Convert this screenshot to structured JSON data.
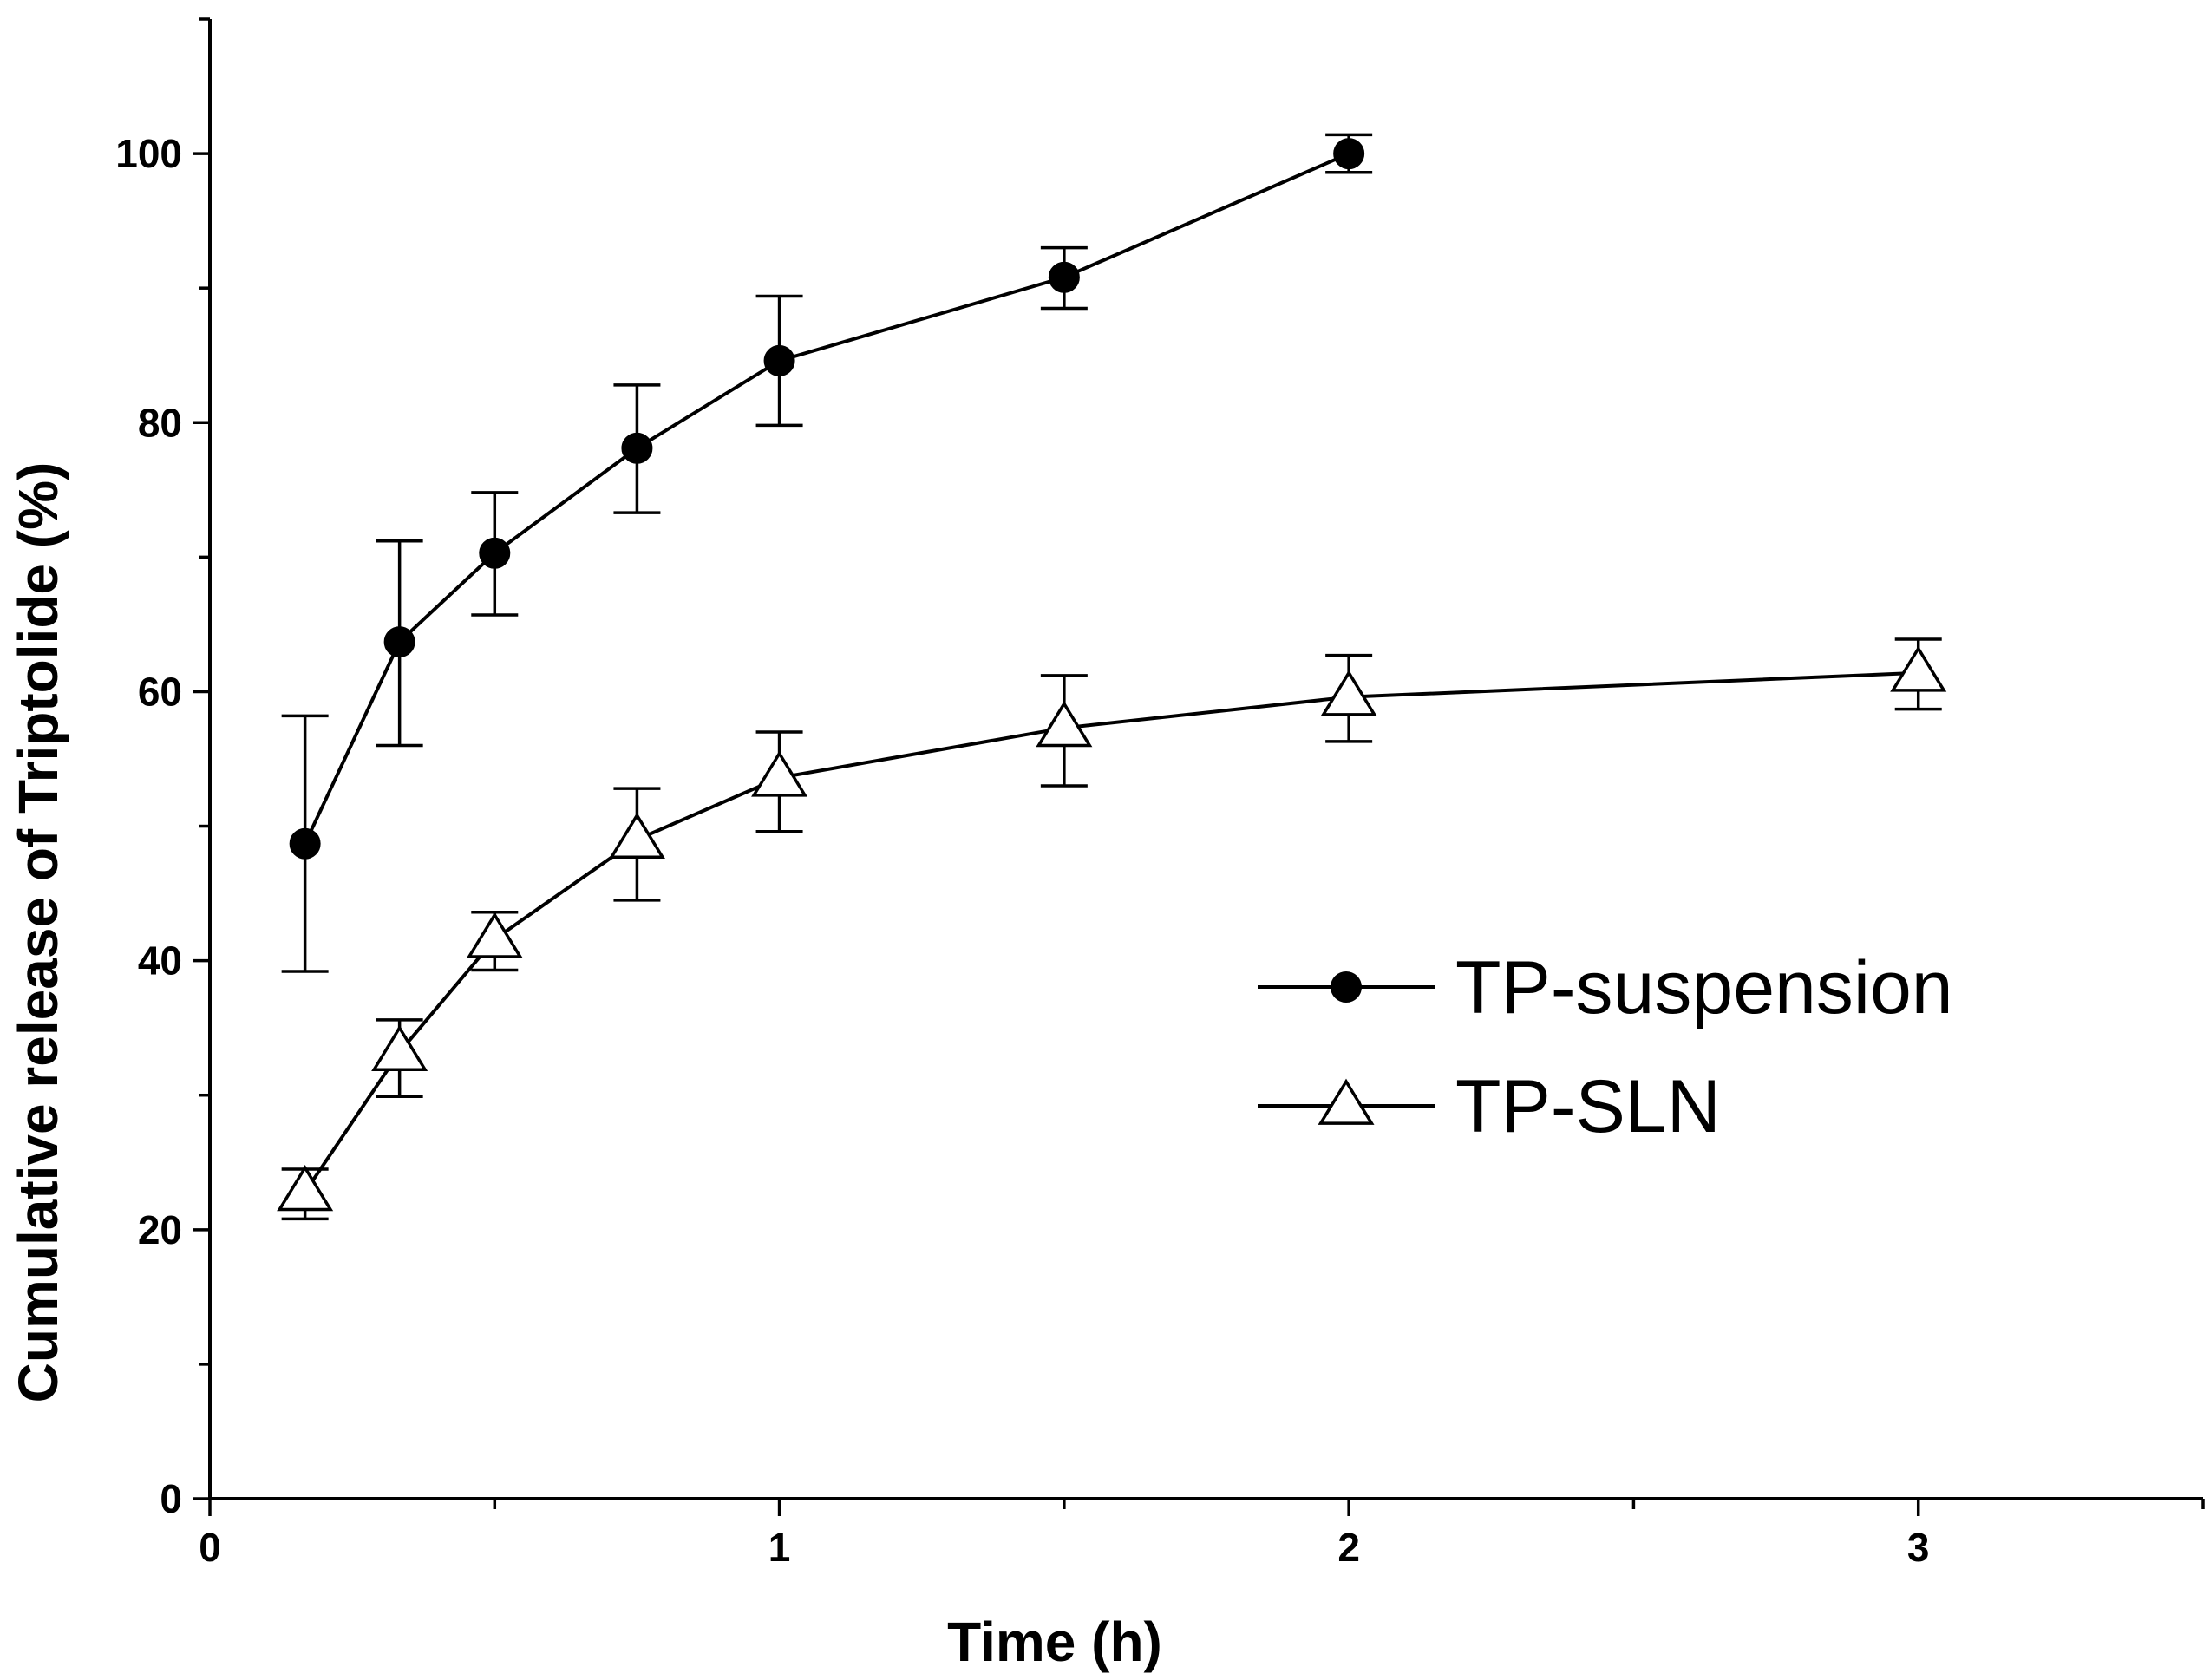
{
  "chart_data": {
    "type": "line",
    "title": "",
    "xlabel": "Time (h)",
    "ylabel": "Cumulative release of Triptolide (%)",
    "xlim": [
      0,
      3.5
    ],
    "ylim": [
      0,
      110
    ],
    "x_ticks": [
      "0",
      "1",
      "2",
      "3"
    ],
    "y_ticks": [
      "0",
      "20",
      "40",
      "60",
      "80",
      "100"
    ],
    "legend_position": "middle-right",
    "series": [
      {
        "name": "TP-suspension",
        "marker": "filled-circle",
        "x": [
          0.167,
          0.333,
          0.5,
          0.75,
          1,
          1.5,
          2
        ],
        "y": [
          48.7,
          63.7,
          70.3,
          78.1,
          84.6,
          90.8,
          100.0
        ],
        "err_upper": [
          58.2,
          71.2,
          74.8,
          82.8,
          89.4,
          93.0,
          101.4
        ],
        "err_lower": [
          39.2,
          56.0,
          65.7,
          73.3,
          79.8,
          88.5,
          98.6
        ]
      },
      {
        "name": "TP-SLN",
        "marker": "open-triangle",
        "x": [
          0.167,
          0.333,
          0.5,
          0.75,
          1,
          1.5,
          2,
          3
        ],
        "y": [
          22.8,
          33.2,
          41.6,
          49.0,
          53.6,
          57.3,
          59.6,
          61.4
        ],
        "err_upper": [
          24.5,
          35.6,
          43.6,
          52.8,
          57.0,
          61.2,
          62.7,
          63.9
        ],
        "err_lower": [
          20.8,
          29.9,
          39.3,
          44.5,
          49.6,
          53.0,
          56.3,
          58.7
        ]
      }
    ]
  }
}
